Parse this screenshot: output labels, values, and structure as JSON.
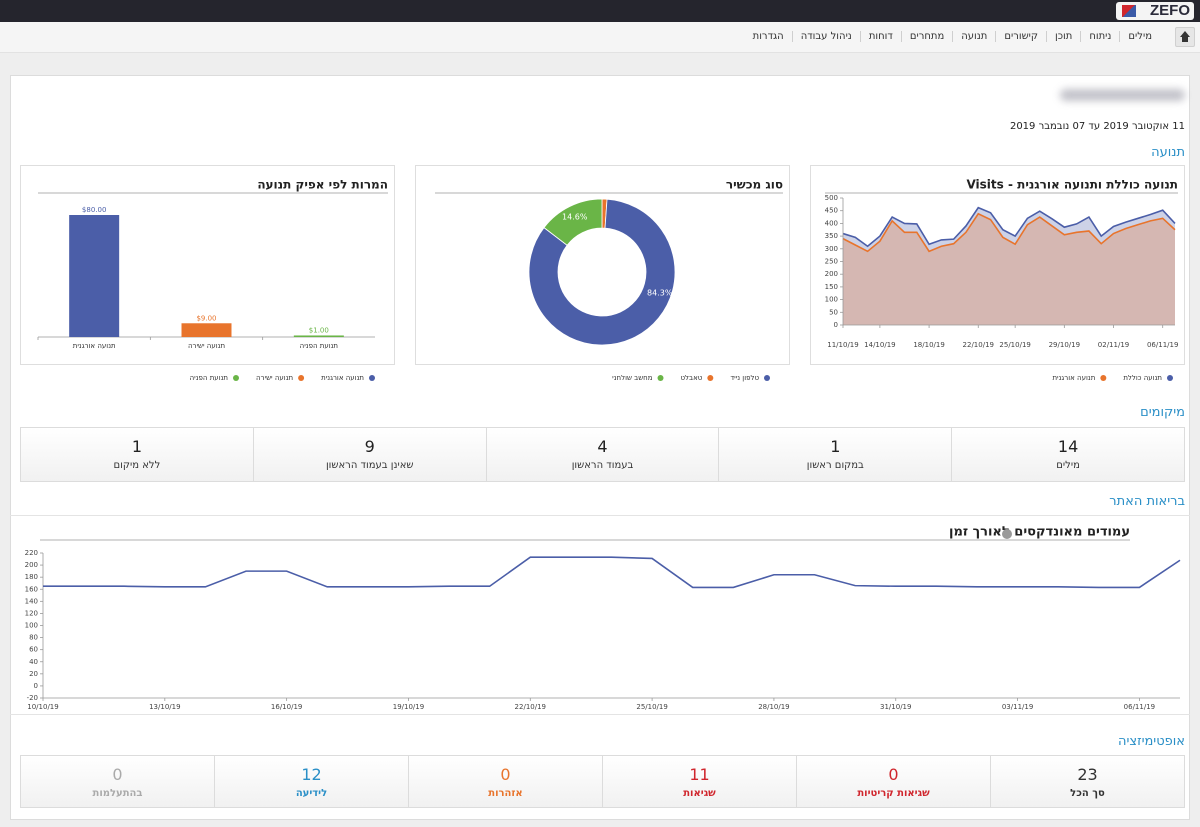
{
  "logo": "ZEFO",
  "nav": [
    "מילים",
    "ניתוח",
    "תוכן",
    "קישורים",
    "תנועה",
    "מתחרים",
    "דוחות",
    "ניהול עבודה",
    "הגדרות"
  ],
  "date_range": "11 אוקטובר 2019 עד 07 נובמבר 2019",
  "sections": [
    "תנועה",
    "מיקומים",
    "בריאות האתר",
    "אופטימיזציה"
  ],
  "chart_data": [
    {
      "type": "area",
      "title": "תנועה כוללת ותנועה אורגנית - Visits",
      "categories": [
        "11/10/19",
        null,
        null,
        "14/10/19",
        null,
        null,
        null,
        "18/10/19",
        null,
        null,
        null,
        "22/10/19",
        null,
        null,
        "25/10/19",
        null,
        null,
        null,
        "29/10/19",
        null,
        null,
        null,
        "02/11/19",
        null,
        null,
        null,
        "06/11/19",
        null
      ],
      "series": [
        {
          "name": "תנועה כוללת",
          "color": "#4b5ea8",
          "values": [
            360,
            345,
            310,
            350,
            425,
            400,
            398,
            318,
            335,
            338,
            390,
            462,
            442,
            375,
            350,
            420,
            448,
            418,
            385,
            398,
            425,
            350,
            388,
            405,
            420,
            435,
            452,
            400
          ]
        },
        {
          "name": "תנועה אורגנית",
          "color": "#e8742c",
          "values": [
            340,
            315,
            290,
            330,
            410,
            365,
            365,
            290,
            310,
            320,
            365,
            438,
            415,
            345,
            318,
            395,
            425,
            390,
            355,
            365,
            370,
            320,
            360,
            380,
            395,
            410,
            420,
            375
          ]
        }
      ],
      "ylim": [
        0,
        500
      ],
      "yticks": [
        0,
        50,
        100,
        150,
        200,
        250,
        300,
        350,
        400,
        450,
        500
      ]
    },
    {
      "type": "donut",
      "title": "סוג מכשיר",
      "categories": [
        "טלפון נייד",
        "טאבלט",
        "מחשב שולחני"
      ],
      "values": [
        84.3,
        1.1,
        14.6
      ],
      "value_labels": [
        "84.3%",
        null,
        "14.6%"
      ],
      "colors": [
        "#4b5ea8",
        "#e8742c",
        "#6ab547"
      ]
    },
    {
      "type": "bar",
      "title": "המרות לפי אפיק תנועה",
      "categories": [
        "תנועה אורגנית",
        "תנועה ישירה",
        "תנועת הפניה"
      ],
      "values": [
        80,
        9,
        1
      ],
      "value_labels": [
        "$80.00",
        "$9.00",
        "$1.00"
      ],
      "colors": [
        "#4b5ea8",
        "#e8742c",
        "#6ab547"
      ]
    },
    {
      "type": "line",
      "title": "עמודים מאונדקסים לאורך זמן",
      "categories": [
        "10/10/19",
        null,
        null,
        "13/10/19",
        null,
        null,
        "16/10/19",
        null,
        null,
        "19/10/19",
        null,
        null,
        "22/10/19",
        null,
        null,
        "25/10/19",
        null,
        null,
        "28/10/19",
        null,
        null,
        "31/10/19",
        null,
        null,
        "03/11/19",
        null,
        null,
        "06/11/19",
        null
      ],
      "values": [
        165,
        165,
        165,
        164,
        164,
        190,
        190,
        164,
        164,
        164,
        165,
        165,
        213,
        213,
        213,
        211,
        163,
        163,
        184,
        184,
        166,
        165,
        165,
        164,
        164,
        164,
        163,
        163,
        208
      ],
      "color": "#4b5ea8",
      "ylim": [
        -20,
        220
      ],
      "yticks": [
        -20,
        0,
        20,
        40,
        60,
        80,
        100,
        120,
        140,
        160,
        180,
        200,
        220
      ]
    }
  ],
  "rankings": [
    {
      "value": 14,
      "label": "מילים"
    },
    {
      "value": 1,
      "label": "במקום ראשון"
    },
    {
      "value": 4,
      "label": "בעמוד הראשון"
    },
    {
      "value": 9,
      "label": "שאינן בעמוד הראשון"
    },
    {
      "value": 1,
      "label": "ללא מיקום"
    }
  ],
  "optimization": [
    {
      "value": 23,
      "label": "סך הכל",
      "color": "#333333"
    },
    {
      "value": 0,
      "label": "שגיאות קריטיות",
      "color": "#d0262d"
    },
    {
      "value": 11,
      "label": "שגיאות",
      "color": "#d0262d"
    },
    {
      "value": 0,
      "label": "אזהרות",
      "color": "#e8742c"
    },
    {
      "value": 12,
      "label": "לידיעה",
      "color": "#2a8fc7"
    },
    {
      "value": 0,
      "label": "בהתעלמות",
      "color": "#aaaaaa"
    }
  ]
}
